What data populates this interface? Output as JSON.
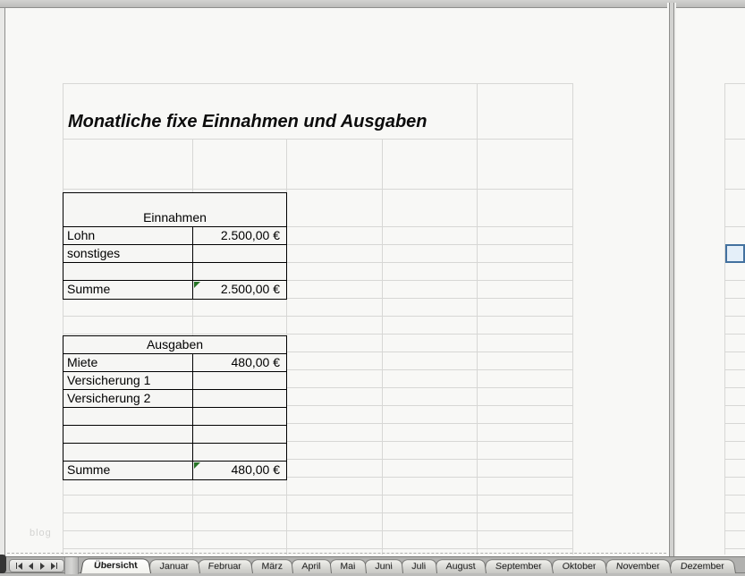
{
  "page": {
    "title": "Monatliche fixe Einnahmen und Ausgaben",
    "watermark": "blog"
  },
  "tables": {
    "einnahmen": {
      "header": "Einnahmen",
      "rows": [
        {
          "label": "Lohn",
          "value": "2.500,00 €"
        },
        {
          "label": "sonstiges",
          "value": ""
        },
        {
          "label": "",
          "value": ""
        },
        {
          "label": "Summe",
          "value": "2.500,00 €",
          "formula_marker": true
        }
      ]
    },
    "ausgaben": {
      "header": "Ausgaben",
      "rows": [
        {
          "label": "Miete",
          "value": "480,00 €"
        },
        {
          "label": "Versicherung 1",
          "value": ""
        },
        {
          "label": "Versicherung 2",
          "value": ""
        },
        {
          "label": "",
          "value": ""
        },
        {
          "label": "",
          "value": ""
        },
        {
          "label": "",
          "value": ""
        },
        {
          "label": "Summe",
          "value": "480,00 €",
          "formula_marker": true
        }
      ]
    }
  },
  "sheet_tabs": [
    {
      "label": "Übersicht",
      "active": true
    },
    {
      "label": "Januar",
      "active": false
    },
    {
      "label": "Februar",
      "active": false
    },
    {
      "label": "März",
      "active": false
    },
    {
      "label": "April",
      "active": false
    },
    {
      "label": "Mai",
      "active": false
    },
    {
      "label": "Juni",
      "active": false
    },
    {
      "label": "Juli",
      "active": false
    },
    {
      "label": "August",
      "active": false
    },
    {
      "label": "September",
      "active": false
    },
    {
      "label": "Oktober",
      "active": false
    },
    {
      "label": "November",
      "active": false
    },
    {
      "label": "Dezember",
      "active": false
    }
  ],
  "tab_nav": {
    "buttons": [
      {
        "icon": "first-sheet-icon"
      },
      {
        "icon": "prev-sheet-icon"
      },
      {
        "icon": "next-sheet-icon"
      },
      {
        "icon": "last-sheet-icon"
      }
    ]
  },
  "selection": {
    "fill_color": "#e4eff9",
    "border_color": "#43719f"
  },
  "colors": {
    "formula_marker_green": "#267326",
    "gridline": "#d7d7d5",
    "table_border": "#000000"
  }
}
